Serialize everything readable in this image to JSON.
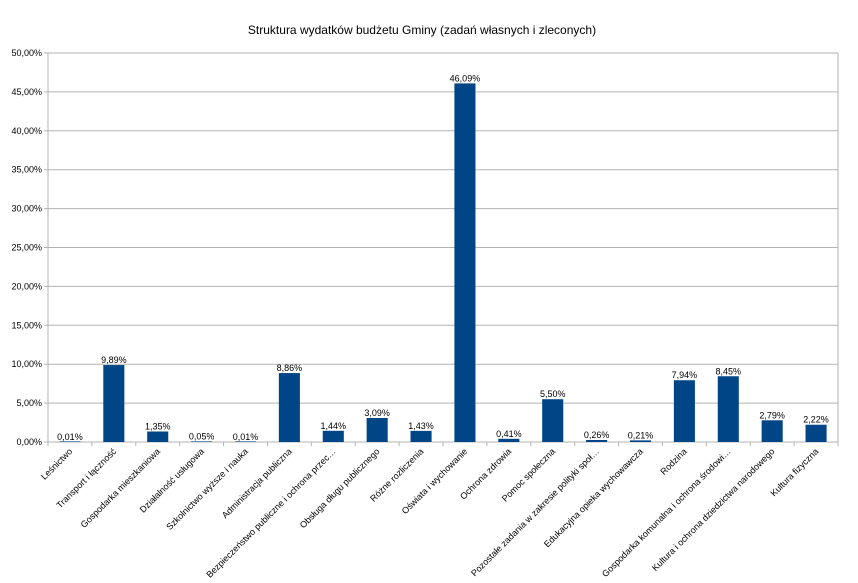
{
  "chart_data": {
    "type": "bar",
    "title": "Struktura wydatków budżetu Gminy (zadań własnych i zleconych)",
    "xlabel": "",
    "ylabel": "",
    "ylim": [
      0,
      50
    ],
    "y_ticks": [
      "0,00%",
      "5,00%",
      "10,00%",
      "15,00%",
      "20,00%",
      "25,00%",
      "30,00%",
      "35,00%",
      "40,00%",
      "45,00%",
      "50,00%"
    ],
    "grid": true,
    "legend": "none",
    "bar_color": "#004586",
    "categories": [
      "Leśnictwo",
      "Transport i łączność",
      "Gospodarka mieszkaniowa",
      "Działalność usługowa",
      "Szkolnictwo wyższe i nauka",
      "Administracja publiczna",
      "Bezpieczeństwo publiczne i ochrona przec…",
      "Obsługa długu publicznego",
      "Różne rozliczenia",
      "Oświata i wychowanie",
      "Ochrona zdrowia",
      "Pomoc społeczna",
      "Pozostałe zadania w zakresie polityki społ…",
      "Edukacyjna opieka wychowawcza",
      "Rodzina",
      "Gospodarka komunalna i ochrona środowi…",
      "Kultura i ochrona dziedzictwa narodowego",
      "Kultura fizyczna"
    ],
    "values": [
      0.01,
      9.89,
      1.35,
      0.05,
      0.01,
      8.86,
      1.44,
      3.09,
      1.43,
      46.09,
      0.41,
      5.5,
      0.26,
      0.21,
      7.94,
      8.45,
      2.79,
      2.22
    ],
    "value_labels": [
      "0,01%",
      "9,89%",
      "1,35%",
      "0,05%",
      "0,01%",
      "8,86%",
      "1,44%",
      "3,09%",
      "1,43%",
      "46,09%",
      "0,41%",
      "5,50%",
      "0,26%",
      "0,21%",
      "7,94%",
      "8,45%",
      "2,79%",
      "2,22%"
    ]
  }
}
